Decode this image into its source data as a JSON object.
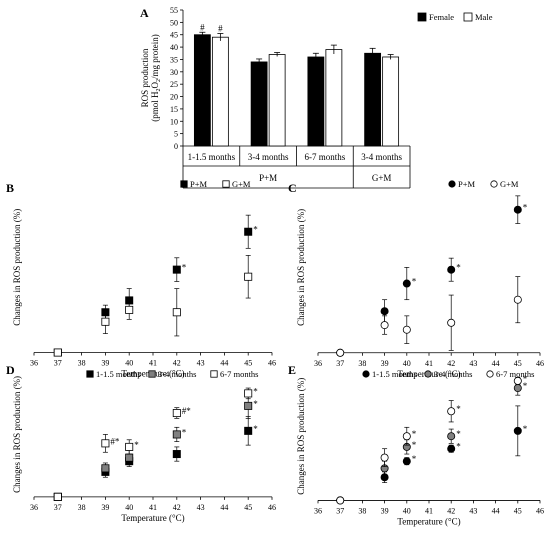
{
  "chart_data": [
    {
      "panel": "A",
      "type": "bar",
      "ylabel_line1": "ROS production",
      "ylabel_line2_prefix": "(pmol H",
      "ylabel_line2_sub1": "2",
      "ylabel_line2_mid": "O",
      "ylabel_line2_sub2": "2",
      "ylabel_line2_suffix": "/mg protein)",
      "ylim": [
        0,
        55
      ],
      "yticks": [
        0,
        5,
        10,
        15,
        20,
        25,
        30,
        35,
        40,
        45,
        50,
        55
      ],
      "categories": [
        "1-1.5 months",
        "3-4 months",
        "6-7 months",
        "3-4 months"
      ],
      "group_labels": [
        "P+M",
        "G+M"
      ],
      "legend_position": "top-right",
      "series": [
        {
          "name": "Female",
          "color": "#000000",
          "values": [
            45,
            34,
            36,
            37.5
          ],
          "errors": [
            1.0,
            1.2,
            1.5,
            2.0
          ],
          "marks": [
            "#",
            "",
            "",
            ""
          ]
        },
        {
          "name": "Male",
          "color": "#ffffff",
          "values": [
            44,
            37,
            39,
            36
          ],
          "errors": [
            1.5,
            0.8,
            1.8,
            1.0
          ],
          "marks": [
            "#",
            "",
            "",
            ""
          ]
        }
      ]
    },
    {
      "panel": "B",
      "type": "scatter",
      "xlabel": "Temperature (°C)",
      "ylabel": "Changes in ROS production (%)",
      "xlim": [
        36,
        46
      ],
      "ylim": [
        -2,
        36
      ],
      "xticks": [
        36,
        37,
        38,
        39,
        40,
        41,
        42,
        43,
        44,
        45,
        46
      ],
      "legend_position": "top-right",
      "series": [
        {
          "name": "P+M",
          "marker": "square",
          "filled": true,
          "x": [
            37,
            39,
            40,
            42,
            45
          ],
          "y": [
            0,
            8.5,
            11,
            17.5,
            25.5
          ],
          "err": [
            0,
            1.5,
            2.5,
            2.5,
            3.5
          ],
          "star": [
            false,
            false,
            false,
            true,
            true
          ]
        },
        {
          "name": "G+M",
          "marker": "square",
          "filled": false,
          "x": [
            37,
            39,
            40,
            42,
            45
          ],
          "y": [
            0,
            6.5,
            9,
            8.5,
            16
          ],
          "err": [
            0,
            2.5,
            2,
            5,
            4.5
          ],
          "star": [
            false,
            false,
            false,
            false,
            false
          ]
        }
      ]
    },
    {
      "panel": "C",
      "type": "scatter",
      "xlabel": "Temperature (°C)",
      "ylabel": "Changes in ROS production (%)",
      "xlim": [
        36,
        46
      ],
      "ylim": [
        -2,
        37
      ],
      "xticks": [
        36,
        37,
        38,
        39,
        40,
        41,
        42,
        43,
        44,
        45,
        46
      ],
      "legend_position": "top-right",
      "series": [
        {
          "name": "P+M",
          "marker": "circle",
          "filled": true,
          "x": [
            37,
            39,
            40,
            42,
            45
          ],
          "y": [
            0,
            9,
            15,
            18,
            31
          ],
          "err": [
            0,
            2.5,
            3.5,
            2.5,
            3
          ],
          "star": [
            false,
            false,
            true,
            true,
            true
          ]
        },
        {
          "name": "G+M",
          "marker": "circle",
          "filled": false,
          "x": [
            37,
            39,
            40,
            42,
            45
          ],
          "y": [
            0,
            6,
            5,
            6.5,
            11.5
          ],
          "err": [
            0,
            2,
            3,
            6,
            5
          ],
          "star": [
            false,
            false,
            false,
            false,
            false
          ]
        }
      ]
    },
    {
      "panel": "D",
      "type": "scatter",
      "xlabel": "Temperature (°C)",
      "ylabel": "Changes in ROS production (%)",
      "xlim": [
        36,
        46
      ],
      "ylim": [
        -2,
        35
      ],
      "xticks": [
        36,
        37,
        38,
        39,
        40,
        41,
        42,
        43,
        44,
        45,
        46
      ],
      "legend_position": "top",
      "series": [
        {
          "name": "1-1.5 months",
          "marker": "square",
          "color": "#000000",
          "x": [
            37,
            39,
            40,
            42,
            45
          ],
          "y": [
            0,
            7,
            10,
            12,
            18.5
          ],
          "err": [
            0,
            1.5,
            1.5,
            2,
            4
          ],
          "star": [
            false,
            false,
            false,
            false,
            true
          ],
          "hash": [
            false,
            false,
            false,
            false,
            false
          ]
        },
        {
          "name": "3-4 months",
          "marker": "square",
          "color": "#808080",
          "x": [
            37,
            39,
            40,
            42,
            45
          ],
          "y": [
            0,
            8,
            11,
            17.5,
            25.5
          ],
          "err": [
            0,
            1.5,
            2,
            2,
            3.5
          ],
          "star": [
            false,
            false,
            false,
            true,
            true
          ],
          "hash": [
            false,
            false,
            false,
            false,
            false
          ]
        },
        {
          "name": "6-7 months",
          "marker": "square",
          "color": "#ffffff",
          "x": [
            37,
            39,
            40,
            42,
            45
          ],
          "y": [
            0,
            15,
            14,
            23.5,
            29
          ],
          "err": [
            0,
            2.5,
            2,
            1.5,
            1.5
          ],
          "star": [
            false,
            true,
            true,
            true,
            true
          ],
          "hash": [
            false,
            true,
            false,
            true,
            false
          ]
        }
      ]
    },
    {
      "panel": "E",
      "type": "scatter",
      "xlabel": "Temperature (°C)",
      "ylabel": "Changes in ROS production (%)",
      "xlim": [
        36,
        46
      ],
      "ylim": [
        -1,
        36
      ],
      "xticks": [
        36,
        37,
        38,
        39,
        40,
        41,
        42,
        43,
        44,
        45,
        46
      ],
      "legend_position": "top",
      "series": [
        {
          "name": "1-1.5 months",
          "marker": "circle",
          "color": "#000000",
          "x": [
            37,
            39,
            40,
            42,
            45
          ],
          "y": [
            0,
            6.5,
            11,
            14.5,
            19.5
          ],
          "err": [
            0,
            1.5,
            1,
            1,
            7
          ],
          "star": [
            false,
            false,
            true,
            true,
            true
          ]
        },
        {
          "name": "3-4 months",
          "marker": "circle",
          "color": "#808080",
          "x": [
            37,
            39,
            40,
            42,
            45
          ],
          "y": [
            0,
            9,
            15,
            18,
            31.5
          ],
          "err": [
            0,
            2,
            2,
            2,
            2
          ],
          "star": [
            false,
            false,
            true,
            true,
            true
          ]
        },
        {
          "name": "6-7 months",
          "marker": "circle",
          "color": "#ffffff",
          "x": [
            37,
            39,
            40,
            42,
            45
          ],
          "y": [
            0,
            12,
            18,
            25,
            33.5
          ],
          "err": [
            0,
            2.5,
            2.5,
            3,
            1
          ],
          "star": [
            false,
            false,
            true,
            true,
            true
          ]
        }
      ]
    }
  ]
}
